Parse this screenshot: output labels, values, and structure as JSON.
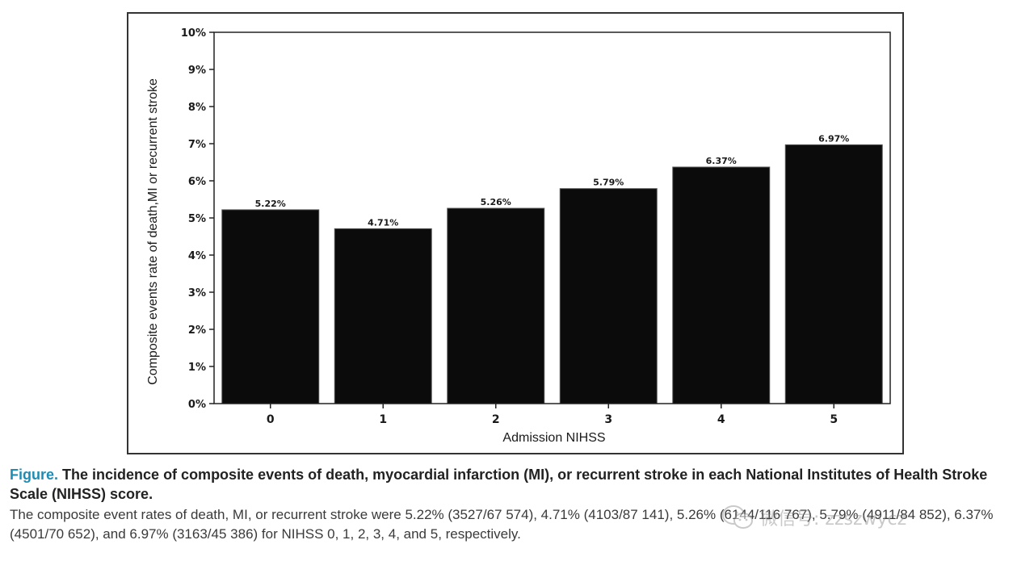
{
  "chart_data": {
    "type": "bar",
    "categories": [
      "0",
      "1",
      "2",
      "3",
      "4",
      "5"
    ],
    "values": [
      5.22,
      4.71,
      5.26,
      5.79,
      6.37,
      6.97
    ],
    "data_labels": [
      "5.22%",
      "4.71%",
      "5.26%",
      "5.79%",
      "6.37%",
      "6.97%"
    ],
    "xlabel": "Admission NIHSS",
    "ylabel": "Composite events rate of death,MI or recurrent stroke",
    "ylim": [
      0,
      10
    ],
    "yticks": [
      "0%",
      "1%",
      "2%",
      "3%",
      "4%",
      "5%",
      "6%",
      "7%",
      "8%",
      "9%",
      "10%"
    ],
    "grid": false,
    "legend": "none",
    "bar_color": "#0b0b0b"
  },
  "caption": {
    "lead": "Figure.",
    "title": "The incidence of composite events of death, myocardial infarction (MI), or recurrent stroke in each National Institutes of Health Stroke Scale (NIHSS) score.",
    "body": "The composite event rates of death, MI, or recurrent stroke were 5.22% (3527/67 574), 4.71% (4103/87 141), 5.26% (6144/116 767), 5.79% (4911/84 852), 6.37% (4501/70 652), and 6.97% (3163/45 386) for NIHSS 0, 1, 2, 3, 4, and 5, respectively.",
    "lead_color": "#1f8db3"
  },
  "watermark": {
    "text": "微信号: zzszwycz",
    "icon": "wechat-icon"
  }
}
